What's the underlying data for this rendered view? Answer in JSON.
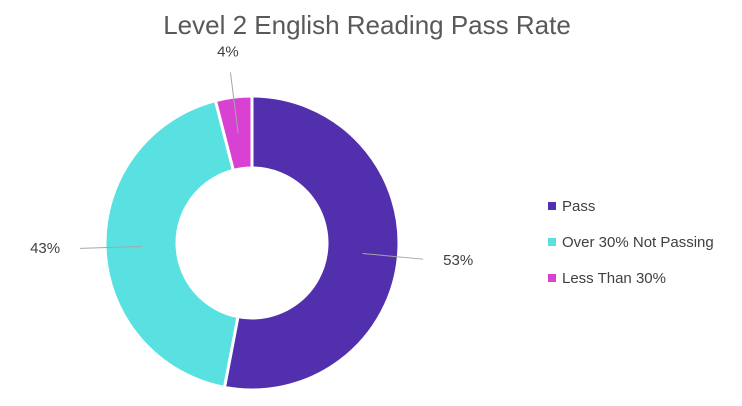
{
  "chart_data": {
    "type": "pie",
    "title": "Level 2 English Reading Pass Rate",
    "categories": [
      "Pass",
      "Over 30% Not Passing",
      "Less Than 30%"
    ],
    "values": [
      53,
      43,
      4
    ],
    "value_labels": [
      "53%",
      "43%",
      "4%"
    ],
    "colors": [
      "#5230ad",
      "#59e1e1",
      "#d941d2"
    ],
    "legend": "right"
  }
}
